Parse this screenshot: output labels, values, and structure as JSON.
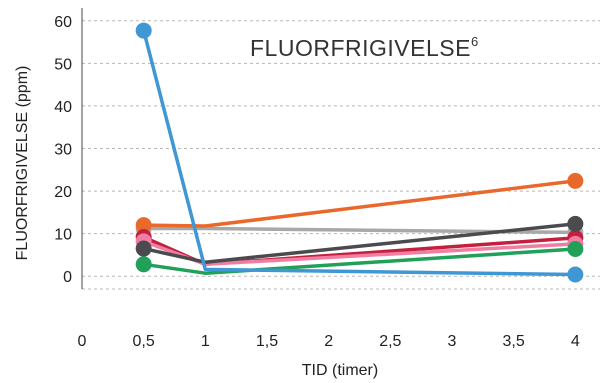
{
  "colors": {
    "background": "#ffffff",
    "grid": "#b8b8b8",
    "axis": "#444444",
    "text": "#222222"
  },
  "chart_data": {
    "type": "line",
    "title": "FLUORFRIGIVELSE",
    "title_superscript": "6",
    "xlabel": "TID (timer)",
    "ylabel": "FLUORFRIGIVELSE (ppm)",
    "xlim": [
      0,
      4.2
    ],
    "ylim": [
      -3,
      63
    ],
    "x_ticks": [
      0,
      0.5,
      1,
      1.5,
      2,
      2.5,
      3,
      3.5,
      4
    ],
    "x_tick_labels": [
      "0",
      "0,5",
      "1",
      "1,5",
      "2",
      "2,5",
      "3",
      "3,5",
      "4"
    ],
    "y_ticks": [
      0,
      10,
      20,
      30,
      40,
      50,
      60
    ],
    "y_tick_labels": [
      "0",
      "10",
      "20",
      "30",
      "40",
      "50",
      "60"
    ],
    "grid": "horizontal-dashed",
    "legend": "none",
    "series": [
      {
        "color": "#a8a8a8",
        "x": [
          0.5,
          1,
          4
        ],
        "y": [
          11.2,
          11.2,
          10.3
        ]
      },
      {
        "color": "#e8692b",
        "x": [
          0.5,
          1,
          4
        ],
        "y": [
          12.0,
          11.8,
          22.4
        ]
      },
      {
        "color": "#c2203e",
        "x": [
          0.5,
          1,
          4
        ],
        "y": [
          9.2,
          2.8,
          9.0
        ]
      },
      {
        "color": "#f07ea2",
        "x": [
          0.5,
          1,
          4
        ],
        "y": [
          8.2,
          2.8,
          7.6
        ]
      },
      {
        "color": "#4b4a4f",
        "x": [
          0.5,
          1,
          4
        ],
        "y": [
          6.5,
          3.3,
          12.3
        ]
      },
      {
        "color": "#21a05a",
        "x": [
          0.5,
          1,
          4
        ],
        "y": [
          2.8,
          0.7,
          6.4
        ]
      },
      {
        "color": "#3f97d4",
        "x": [
          0.5,
          1,
          4
        ],
        "y": [
          57.7,
          1.6,
          0.4
        ]
      }
    ]
  }
}
